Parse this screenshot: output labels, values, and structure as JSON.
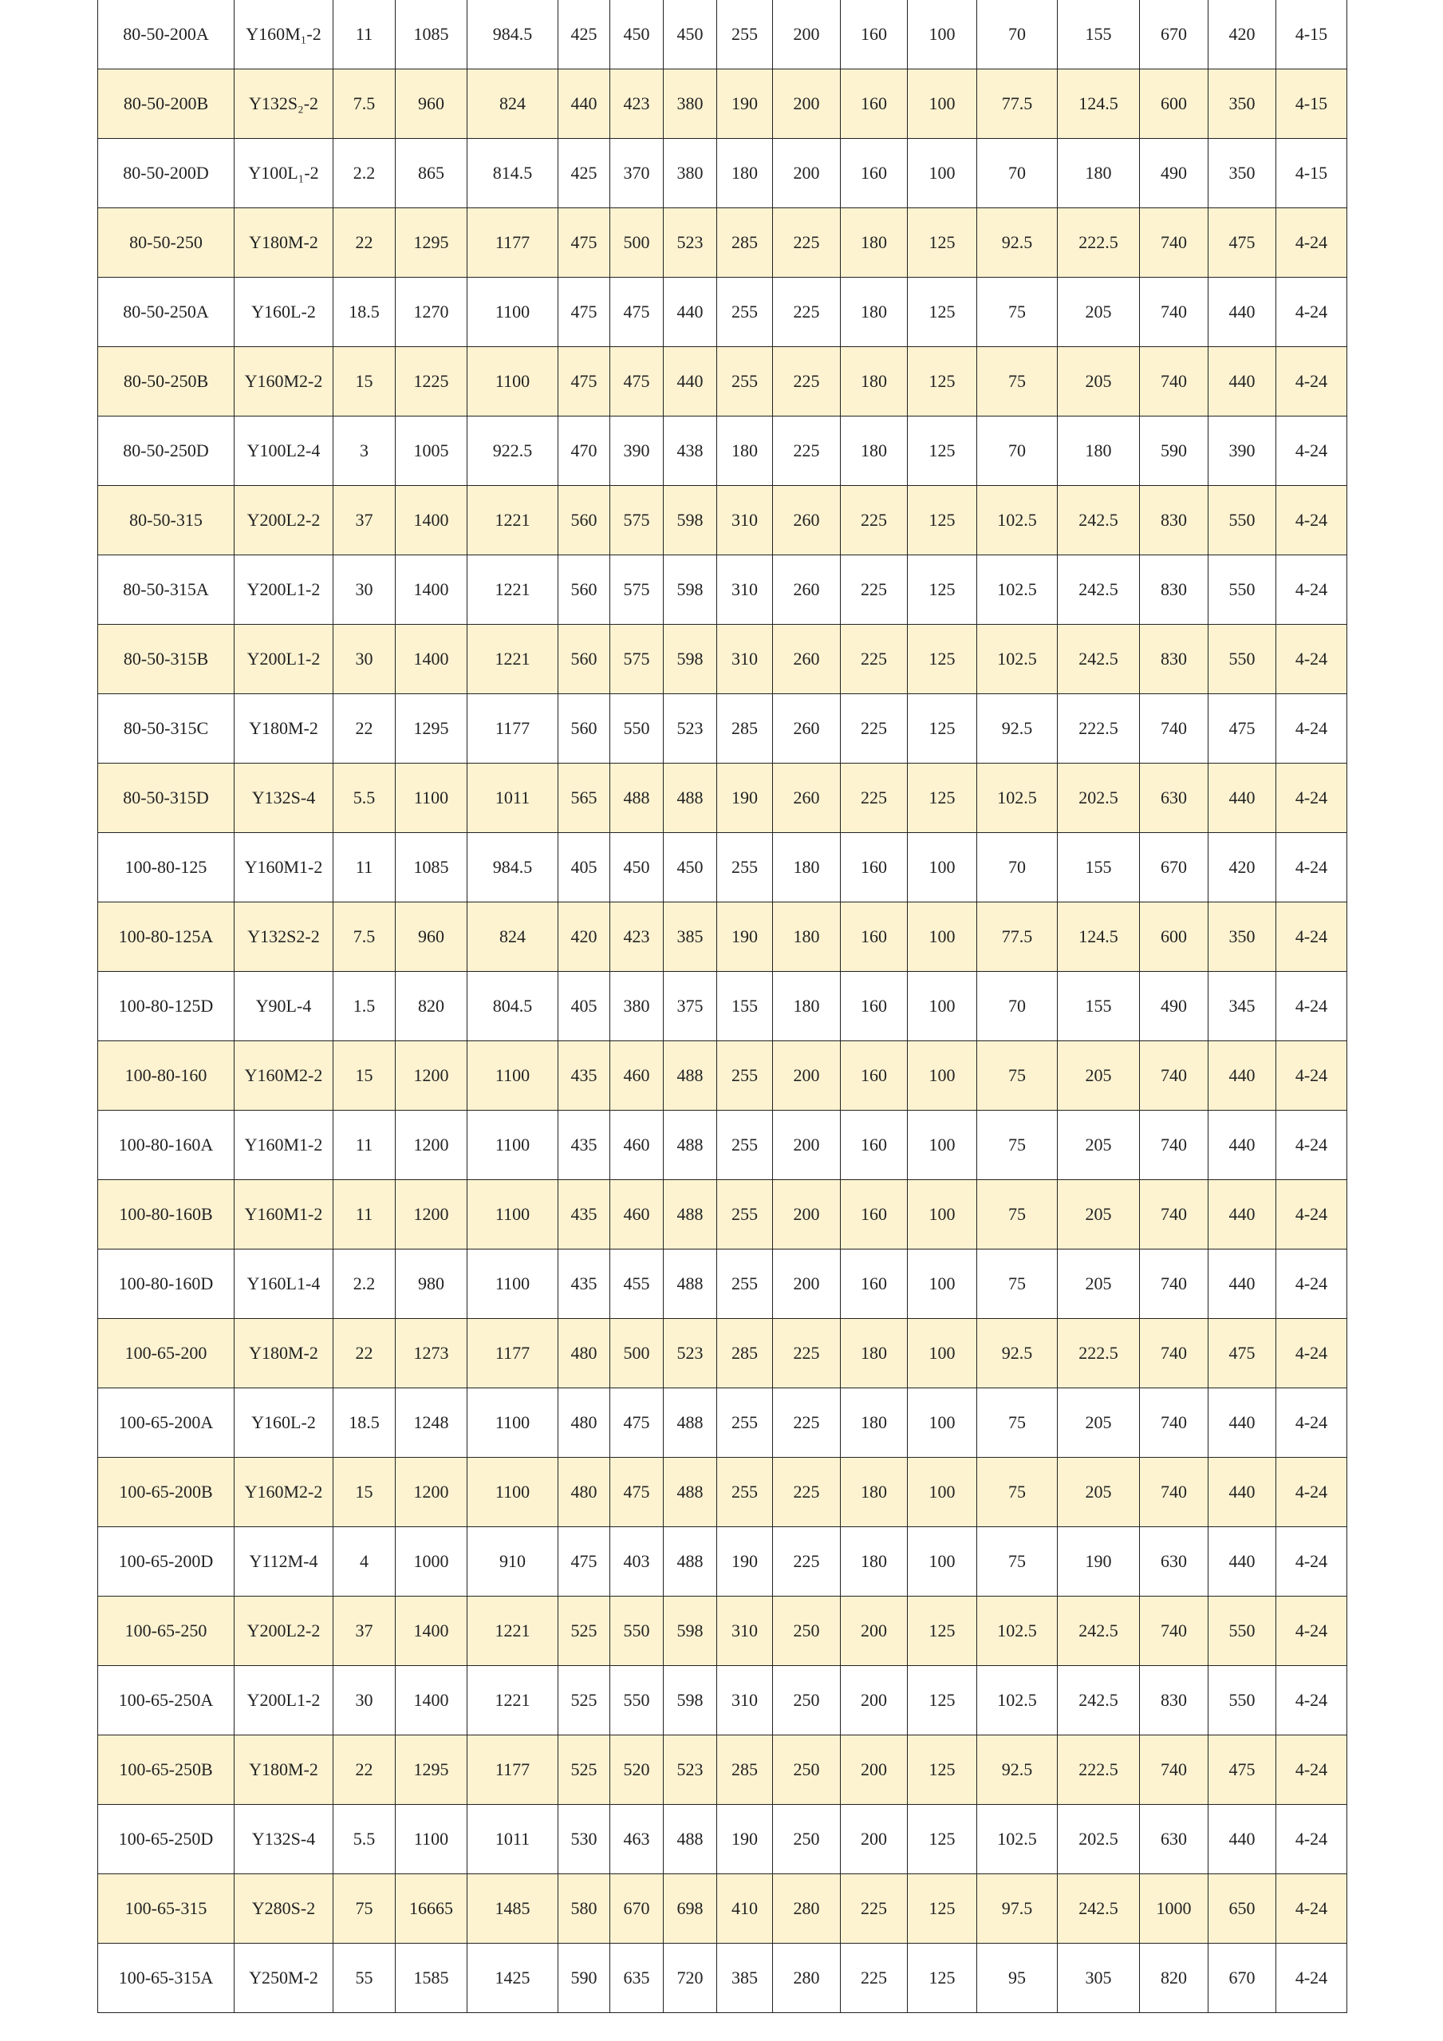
{
  "table": {
    "rows": [
      [
        "80-50-200A",
        "Y160M₁-2",
        "11",
        "1085",
        "984.5",
        "425",
        "450",
        "450",
        "255",
        "200",
        "160",
        "100",
        "70",
        "155",
        "670",
        "420",
        "4-15"
      ],
      [
        "80-50-200B",
        "Y132S₂-2",
        "7.5",
        "960",
        "824",
        "440",
        "423",
        "380",
        "190",
        "200",
        "160",
        "100",
        "77.5",
        "124.5",
        "600",
        "350",
        "4-15"
      ],
      [
        "80-50-200D",
        "Y100L₁-2",
        "2.2",
        "865",
        "814.5",
        "425",
        "370",
        "380",
        "180",
        "200",
        "160",
        "100",
        "70",
        "180",
        "490",
        "350",
        "4-15"
      ],
      [
        "80-50-250",
        "Y180M-2",
        "22",
        "1295",
        "1177",
        "475",
        "500",
        "523",
        "285",
        "225",
        "180",
        "125",
        "92.5",
        "222.5",
        "740",
        "475",
        "4-24"
      ],
      [
        "80-50-250A",
        "Y160L-2",
        "18.5",
        "1270",
        "1100",
        "475",
        "475",
        "440",
        "255",
        "225",
        "180",
        "125",
        "75",
        "205",
        "740",
        "440",
        "4-24"
      ],
      [
        "80-50-250B",
        "Y160M2-2",
        "15",
        "1225",
        "1100",
        "475",
        "475",
        "440",
        "255",
        "225",
        "180",
        "125",
        "75",
        "205",
        "740",
        "440",
        "4-24"
      ],
      [
        "80-50-250D",
        "Y100L2-4",
        "3",
        "1005",
        "922.5",
        "470",
        "390",
        "438",
        "180",
        "225",
        "180",
        "125",
        "70",
        "180",
        "590",
        "390",
        "4-24"
      ],
      [
        "80-50-315",
        "Y200L2-2",
        "37",
        "1400",
        "1221",
        "560",
        "575",
        "598",
        "310",
        "260",
        "225",
        "125",
        "102.5",
        "242.5",
        "830",
        "550",
        "4-24"
      ],
      [
        "80-50-315A",
        "Y200L1-2",
        "30",
        "1400",
        "1221",
        "560",
        "575",
        "598",
        "310",
        "260",
        "225",
        "125",
        "102.5",
        "242.5",
        "830",
        "550",
        "4-24"
      ],
      [
        "80-50-315B",
        "Y200L1-2",
        "30",
        "1400",
        "1221",
        "560",
        "575",
        "598",
        "310",
        "260",
        "225",
        "125",
        "102.5",
        "242.5",
        "830",
        "550",
        "4-24"
      ],
      [
        "80-50-315C",
        "Y180M-2",
        "22",
        "1295",
        "1177",
        "560",
        "550",
        "523",
        "285",
        "260",
        "225",
        "125",
        "92.5",
        "222.5",
        "740",
        "475",
        "4-24"
      ],
      [
        "80-50-315D",
        "Y132S-4",
        "5.5",
        "1100",
        "1011",
        "565",
        "488",
        "488",
        "190",
        "260",
        "225",
        "125",
        "102.5",
        "202.5",
        "630",
        "440",
        "4-24"
      ],
      [
        "100-80-125",
        "Y160M1-2",
        "11",
        "1085",
        "984.5",
        "405",
        "450",
        "450",
        "255",
        "180",
        "160",
        "100",
        "70",
        "155",
        "670",
        "420",
        "4-24"
      ],
      [
        "100-80-125A",
        "Y132S2-2",
        "7.5",
        "960",
        "824",
        "420",
        "423",
        "385",
        "190",
        "180",
        "160",
        "100",
        "77.5",
        "124.5",
        "600",
        "350",
        "4-24"
      ],
      [
        "100-80-125D",
        "Y90L-4",
        "1.5",
        "820",
        "804.5",
        "405",
        "380",
        "375",
        "155",
        "180",
        "160",
        "100",
        "70",
        "155",
        "490",
        "345",
        "4-24"
      ],
      [
        "100-80-160",
        "Y160M2-2",
        "15",
        "1200",
        "1100",
        "435",
        "460",
        "488",
        "255",
        "200",
        "160",
        "100",
        "75",
        "205",
        "740",
        "440",
        "4-24"
      ],
      [
        "100-80-160A",
        "Y160M1-2",
        "11",
        "1200",
        "1100",
        "435",
        "460",
        "488",
        "255",
        "200",
        "160",
        "100",
        "75",
        "205",
        "740",
        "440",
        "4-24"
      ],
      [
        "100-80-160B",
        "Y160M1-2",
        "11",
        "1200",
        "1100",
        "435",
        "460",
        "488",
        "255",
        "200",
        "160",
        "100",
        "75",
        "205",
        "740",
        "440",
        "4-24"
      ],
      [
        "100-80-160D",
        "Y160L1-4",
        "2.2",
        "980",
        "1100",
        "435",
        "455",
        "488",
        "255",
        "200",
        "160",
        "100",
        "75",
        "205",
        "740",
        "440",
        "4-24"
      ],
      [
        "100-65-200",
        "Y180M-2",
        "22",
        "1273",
        "1177",
        "480",
        "500",
        "523",
        "285",
        "225",
        "180",
        "100",
        "92.5",
        "222.5",
        "740",
        "475",
        "4-24"
      ],
      [
        "100-65-200A",
        "Y160L-2",
        "18.5",
        "1248",
        "1100",
        "480",
        "475",
        "488",
        "255",
        "225",
        "180",
        "100",
        "75",
        "205",
        "740",
        "440",
        "4-24"
      ],
      [
        "100-65-200B",
        "Y160M2-2",
        "15",
        "1200",
        "1100",
        "480",
        "475",
        "488",
        "255",
        "225",
        "180",
        "100",
        "75",
        "205",
        "740",
        "440",
        "4-24"
      ],
      [
        "100-65-200D",
        "Y112M-4",
        "4",
        "1000",
        "910",
        "475",
        "403",
        "488",
        "190",
        "225",
        "180",
        "100",
        "75",
        "190",
        "630",
        "440",
        "4-24"
      ],
      [
        "100-65-250",
        "Y200L2-2",
        "37",
        "1400",
        "1221",
        "525",
        "550",
        "598",
        "310",
        "250",
        "200",
        "125",
        "102.5",
        "242.5",
        "740",
        "550",
        "4-24"
      ],
      [
        "100-65-250A",
        "Y200L1-2",
        "30",
        "1400",
        "1221",
        "525",
        "550",
        "598",
        "310",
        "250",
        "200",
        "125",
        "102.5",
        "242.5",
        "830",
        "550",
        "4-24"
      ],
      [
        "100-65-250B",
        "Y180M-2",
        "22",
        "1295",
        "1177",
        "525",
        "520",
        "523",
        "285",
        "250",
        "200",
        "125",
        "92.5",
        "222.5",
        "740",
        "475",
        "4-24"
      ],
      [
        "100-65-250D",
        "Y132S-4",
        "5.5",
        "1100",
        "1011",
        "530",
        "463",
        "488",
        "190",
        "250",
        "200",
        "125",
        "102.5",
        "202.5",
        "630",
        "440",
        "4-24"
      ],
      [
        "100-65-315",
        "Y280S-2",
        "75",
        "16665",
        "1485",
        "580",
        "670",
        "698",
        "410",
        "280",
        "225",
        "125",
        "97.5",
        "242.5",
        "1000",
        "650",
        "4-24"
      ],
      [
        "100-65-315A",
        "Y250M-2",
        "55",
        "1585",
        "1425",
        "590",
        "635",
        "720",
        "385",
        "280",
        "225",
        "125",
        "95",
        "305",
        "820",
        "670",
        "4-24"
      ]
    ]
  }
}
